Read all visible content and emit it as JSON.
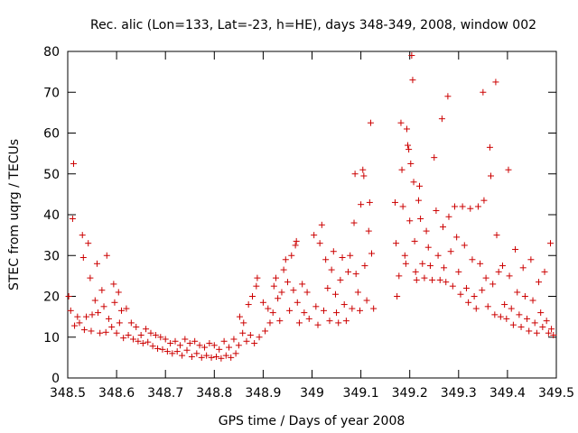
{
  "chart_data": {
    "type": "scatter",
    "title": "Rec. alic (Lon=133, Lat=-23, h=HE), days 348-349, 2008, window 002",
    "xlabel": "GPS time / Days of year 2008",
    "ylabel": "STEC from uqrg / TECUs",
    "xlim": [
      348.5,
      349.5
    ],
    "ylim": [
      0,
      80
    ],
    "x_ticks": [
      348.5,
      348.6,
      348.7,
      348.8,
      348.9,
      349,
      349.1,
      349.2,
      349.3,
      349.4,
      349.5
    ],
    "x_tick_labels": [
      "348.5",
      "348.6",
      "348.7",
      "348.8",
      "348.9",
      "349",
      "349.1",
      "349.2",
      "349.3",
      "349.4",
      "349.5"
    ],
    "y_ticks": [
      0,
      10,
      20,
      30,
      40,
      50,
      60,
      70,
      80
    ],
    "y_tick_labels": [
      "0",
      "10",
      "20",
      "30",
      "40",
      "50",
      "60",
      "70",
      "80"
    ],
    "marker": "+",
    "color": "#cc0000",
    "series": [
      {
        "name": "STEC",
        "points": [
          [
            348.502,
            20.0
          ],
          [
            348.506,
            16.5
          ],
          [
            348.51,
            39.0
          ],
          [
            348.512,
            52.5
          ],
          [
            348.514,
            12.8
          ],
          [
            348.52,
            15.0
          ],
          [
            348.524,
            13.5
          ],
          [
            348.53,
            35.0
          ],
          [
            348.532,
            29.5
          ],
          [
            348.534,
            11.8
          ],
          [
            348.538,
            15.0
          ],
          [
            348.542,
            33.0
          ],
          [
            348.546,
            24.5
          ],
          [
            348.548,
            11.5
          ],
          [
            348.55,
            15.5
          ],
          [
            348.556,
            19.0
          ],
          [
            348.56,
            28.0
          ],
          [
            348.562,
            16.0
          ],
          [
            348.566,
            11.0
          ],
          [
            348.57,
            21.5
          ],
          [
            348.574,
            17.5
          ],
          [
            348.578,
            11.2
          ],
          [
            348.58,
            30.0
          ],
          [
            348.584,
            14.5
          ],
          [
            348.59,
            12.5
          ],
          [
            348.594,
            23.0
          ],
          [
            348.596,
            18.5
          ],
          [
            348.6,
            11.0
          ],
          [
            348.604,
            21.0
          ],
          [
            348.606,
            13.5
          ],
          [
            348.61,
            16.5
          ],
          [
            348.614,
            9.8
          ],
          [
            348.62,
            17.0
          ],
          [
            348.624,
            10.5
          ],
          [
            348.63,
            13.5
          ],
          [
            348.634,
            9.5
          ],
          [
            348.64,
            12.5
          ],
          [
            348.644,
            9.0
          ],
          [
            348.65,
            10.5
          ],
          [
            348.654,
            8.5
          ],
          [
            348.66,
            12.0
          ],
          [
            348.664,
            8.8
          ],
          [
            348.67,
            11.0
          ],
          [
            348.674,
            7.8
          ],
          [
            348.68,
            10.5
          ],
          [
            348.684,
            7.2
          ],
          [
            348.69,
            10.0
          ],
          [
            348.694,
            7.0
          ],
          [
            348.7,
            9.5
          ],
          [
            348.704,
            6.5
          ],
          [
            348.71,
            8.5
          ],
          [
            348.714,
            6.0
          ],
          [
            348.72,
            9.0
          ],
          [
            348.724,
            6.5
          ],
          [
            348.73,
            8.0
          ],
          [
            348.734,
            5.5
          ],
          [
            348.74,
            9.5
          ],
          [
            348.744,
            6.8
          ],
          [
            348.75,
            8.5
          ],
          [
            348.754,
            5.2
          ],
          [
            348.76,
            9.0
          ],
          [
            348.764,
            6.0
          ],
          [
            348.77,
            8.0
          ],
          [
            348.774,
            5.0
          ],
          [
            348.78,
            7.5
          ],
          [
            348.784,
            5.5
          ],
          [
            348.79,
            8.5
          ],
          [
            348.794,
            5.0
          ],
          [
            348.8,
            8.0
          ],
          [
            348.804,
            5.2
          ],
          [
            348.81,
            7.0
          ],
          [
            348.814,
            4.8
          ],
          [
            348.82,
            9.0
          ],
          [
            348.824,
            5.5
          ],
          [
            348.83,
            7.5
          ],
          [
            348.834,
            5.0
          ],
          [
            348.84,
            9.5
          ],
          [
            348.844,
            6.0
          ],
          [
            348.85,
            8.0
          ],
          [
            348.852,
            15.0
          ],
          [
            348.858,
            11.0
          ],
          [
            348.86,
            13.5
          ],
          [
            348.866,
            9.0
          ],
          [
            348.87,
            18.0
          ],
          [
            348.874,
            10.5
          ],
          [
            348.878,
            20.0
          ],
          [
            348.882,
            8.5
          ],
          [
            348.886,
            22.5
          ],
          [
            348.888,
            24.5
          ],
          [
            348.892,
            10.0
          ],
          [
            348.9,
            18.5
          ],
          [
            348.904,
            11.5
          ],
          [
            348.91,
            17.0
          ],
          [
            348.914,
            13.5
          ],
          [
            348.92,
            16.0
          ],
          [
            348.922,
            22.5
          ],
          [
            348.926,
            24.5
          ],
          [
            348.93,
            19.5
          ],
          [
            348.934,
            14.0
          ],
          [
            348.938,
            21.0
          ],
          [
            348.942,
            26.5
          ],
          [
            348.946,
            29.0
          ],
          [
            348.95,
            23.5
          ],
          [
            348.954,
            16.5
          ],
          [
            348.958,
            30.0
          ],
          [
            348.962,
            21.5
          ],
          [
            348.966,
            32.5
          ],
          [
            348.968,
            33.5
          ],
          [
            348.97,
            18.5
          ],
          [
            348.974,
            13.5
          ],
          [
            348.98,
            23.0
          ],
          [
            348.984,
            16.0
          ],
          [
            348.99,
            21.0
          ],
          [
            348.994,
            14.5
          ],
          [
            349.004,
            35.0
          ],
          [
            349.008,
            17.5
          ],
          [
            349.012,
            13.0
          ],
          [
            349.016,
            33.0
          ],
          [
            349.02,
            37.5
          ],
          [
            349.024,
            16.5
          ],
          [
            349.028,
            29.0
          ],
          [
            349.032,
            22.0
          ],
          [
            349.036,
            14.0
          ],
          [
            349.04,
            26.5
          ],
          [
            349.044,
            31.0
          ],
          [
            349.048,
            20.5
          ],
          [
            349.05,
            16.0
          ],
          [
            349.054,
            13.5
          ],
          [
            349.058,
            24.0
          ],
          [
            349.062,
            29.5
          ],
          [
            349.066,
            18.0
          ],
          [
            349.07,
            14.0
          ],
          [
            349.074,
            26.0
          ],
          [
            349.078,
            30.0
          ],
          [
            349.082,
            17.0
          ],
          [
            349.086,
            38.0
          ],
          [
            349.088,
            50.0
          ],
          [
            349.09,
            25.5
          ],
          [
            349.094,
            21.0
          ],
          [
            349.098,
            16.5
          ],
          [
            349.1,
            42.5
          ],
          [
            349.104,
            51.0
          ],
          [
            349.106,
            49.5
          ],
          [
            349.108,
            27.5
          ],
          [
            349.112,
            19.0
          ],
          [
            349.116,
            36.0
          ],
          [
            349.118,
            43.0
          ],
          [
            349.12,
            62.5
          ],
          [
            349.122,
            30.5
          ],
          [
            349.126,
            17.0
          ],
          [
            349.17,
            43.0
          ],
          [
            349.172,
            33.0
          ],
          [
            349.174,
            20.0
          ],
          [
            349.178,
            25.0
          ],
          [
            349.182,
            62.5
          ],
          [
            349.184,
            51.0
          ],
          [
            349.186,
            42.0
          ],
          [
            349.19,
            30.0
          ],
          [
            349.192,
            28.0
          ],
          [
            349.194,
            61.0
          ],
          [
            349.196,
            57.0
          ],
          [
            349.198,
            56.0
          ],
          [
            349.2,
            38.5
          ],
          [
            349.202,
            52.5
          ],
          [
            349.204,
            79.0
          ],
          [
            349.206,
            73.0
          ],
          [
            349.208,
            48.0
          ],
          [
            349.21,
            33.5
          ],
          [
            349.212,
            26.0
          ],
          [
            349.214,
            24.0
          ],
          [
            349.218,
            43.5
          ],
          [
            349.22,
            47.0
          ],
          [
            349.222,
            39.0
          ],
          [
            349.226,
            28.0
          ],
          [
            349.23,
            24.5
          ],
          [
            349.234,
            36.0
          ],
          [
            349.238,
            32.0
          ],
          [
            349.242,
            27.5
          ],
          [
            349.246,
            24.0
          ],
          [
            349.25,
            54.0
          ],
          [
            349.254,
            41.0
          ],
          [
            349.258,
            30.0
          ],
          [
            349.262,
            24.0
          ],
          [
            349.266,
            63.5
          ],
          [
            349.268,
            37.0
          ],
          [
            349.27,
            27.0
          ],
          [
            349.274,
            23.5
          ],
          [
            349.278,
            69.0
          ],
          [
            349.28,
            39.5
          ],
          [
            349.284,
            31.0
          ],
          [
            349.288,
            22.5
          ],
          [
            349.292,
            42.0
          ],
          [
            349.296,
            34.5
          ],
          [
            349.3,
            26.0
          ],
          [
            349.304,
            20.5
          ],
          [
            349.308,
            42.0
          ],
          [
            349.312,
            32.5
          ],
          [
            349.316,
            22.0
          ],
          [
            349.32,
            18.5
          ],
          [
            349.324,
            41.5
          ],
          [
            349.328,
            29.0
          ],
          [
            349.332,
            20.0
          ],
          [
            349.336,
            17.0
          ],
          [
            349.34,
            42.0
          ],
          [
            349.344,
            28.0
          ],
          [
            349.348,
            21.5
          ],
          [
            349.35,
            70.0
          ],
          [
            349.352,
            43.5
          ],
          [
            349.356,
            24.5
          ],
          [
            349.36,
            17.5
          ],
          [
            349.364,
            56.5
          ],
          [
            349.366,
            49.5
          ],
          [
            349.37,
            23.0
          ],
          [
            349.374,
            15.5
          ],
          [
            349.376,
            72.5
          ],
          [
            349.378,
            35.0
          ],
          [
            349.382,
            26.0
          ],
          [
            349.386,
            15.0
          ],
          [
            349.39,
            27.5
          ],
          [
            349.394,
            18.0
          ],
          [
            349.398,
            14.5
          ],
          [
            349.402,
            51.0
          ],
          [
            349.404,
            25.0
          ],
          [
            349.408,
            17.0
          ],
          [
            349.412,
            13.0
          ],
          [
            349.416,
            31.5
          ],
          [
            349.42,
            21.0
          ],
          [
            349.424,
            15.5
          ],
          [
            349.428,
            12.5
          ],
          [
            349.432,
            27.0
          ],
          [
            349.436,
            20.0
          ],
          [
            349.44,
            14.5
          ],
          [
            349.444,
            11.5
          ],
          [
            349.448,
            29.0
          ],
          [
            349.452,
            19.0
          ],
          [
            349.456,
            13.5
          ],
          [
            349.46,
            11.0
          ],
          [
            349.464,
            23.5
          ],
          [
            349.468,
            16.0
          ],
          [
            349.472,
            12.5
          ],
          [
            349.476,
            26.0
          ],
          [
            349.48,
            14.0
          ],
          [
            349.484,
            11.0
          ],
          [
            349.488,
            33.0
          ],
          [
            349.49,
            12.0
          ],
          [
            349.494,
            10.5
          ]
        ]
      }
    ]
  }
}
